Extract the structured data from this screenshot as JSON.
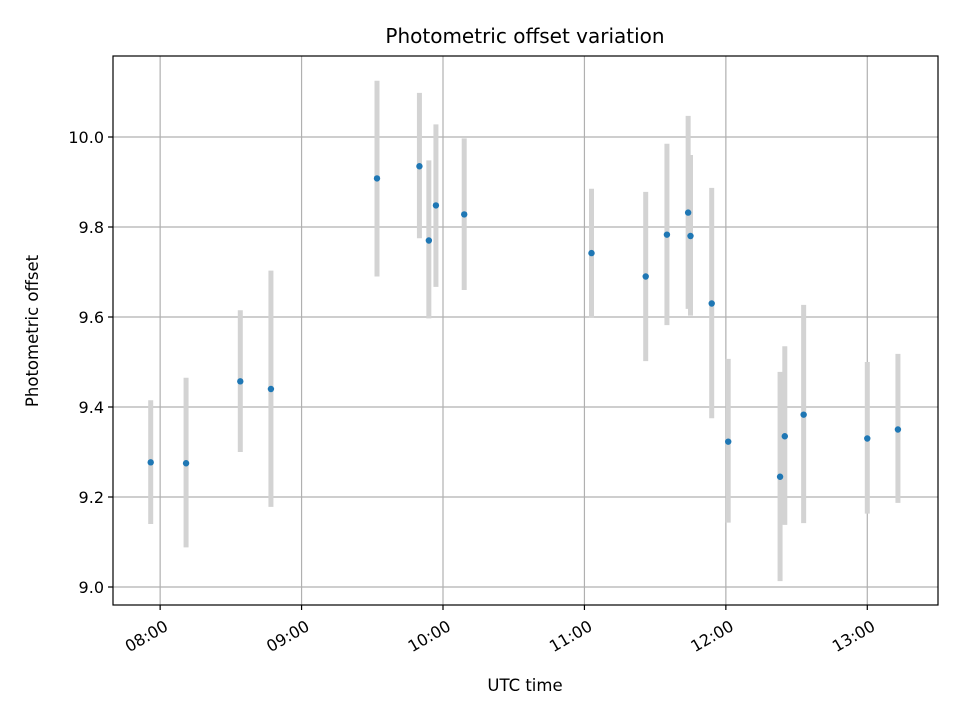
{
  "chart_data": {
    "type": "scatter",
    "title": "Photometric offset variation",
    "xlabel": "UTC time",
    "ylabel": "Photometric offset",
    "x_axis_kind": "time",
    "xlim": [
      "07:40",
      "13:30"
    ],
    "ylim": [
      8.96,
      10.18
    ],
    "xticks": [
      "08:00",
      "09:00",
      "10:00",
      "11:00",
      "12:00",
      "13:00"
    ],
    "yticks": [
      9.0,
      9.2,
      9.4,
      9.6,
      9.8,
      10.0
    ],
    "ytick_labels": [
      "9.0",
      "9.2",
      "9.4",
      "9.6",
      "9.8",
      "10.0"
    ],
    "grid": true,
    "point_color": "#1f77b4",
    "errorbar_color": "#d3d3d3",
    "points": [
      {
        "x": "07:56",
        "y": 9.277,
        "low": 9.14,
        "high": 9.415
      },
      {
        "x": "08:11",
        "y": 9.275,
        "low": 9.088,
        "high": 9.465
      },
      {
        "x": "08:34",
        "y": 9.457,
        "low": 9.3,
        "high": 9.615
      },
      {
        "x": "08:47",
        "y": 9.44,
        "low": 9.178,
        "high": 9.703
      },
      {
        "x": "09:32",
        "y": 9.908,
        "low": 9.69,
        "high": 10.125
      },
      {
        "x": "09:50",
        "y": 9.935,
        "low": 9.775,
        "high": 10.098
      },
      {
        "x": "09:54",
        "y": 9.77,
        "low": 9.597,
        "high": 9.948
      },
      {
        "x": "09:57",
        "y": 9.848,
        "low": 9.667,
        "high": 10.028
      },
      {
        "x": "10:09",
        "y": 9.828,
        "low": 9.66,
        "high": 9.997
      },
      {
        "x": "11:03",
        "y": 9.742,
        "low": 9.598,
        "high": 9.885
      },
      {
        "x": "11:26",
        "y": 9.69,
        "low": 9.502,
        "high": 9.878
      },
      {
        "x": "11:35",
        "y": 9.783,
        "low": 9.582,
        "high": 9.985
      },
      {
        "x": "11:44",
        "y": 9.832,
        "low": 9.618,
        "high": 10.047
      },
      {
        "x": "11:45",
        "y": 9.78,
        "low": 9.603,
        "high": 9.96
      },
      {
        "x": "11:54",
        "y": 9.63,
        "low": 9.375,
        "high": 9.887
      },
      {
        "x": "12:01",
        "y": 9.323,
        "low": 9.143,
        "high": 9.507
      },
      {
        "x": "12:23",
        "y": 9.245,
        "low": 9.013,
        "high": 9.478
      },
      {
        "x": "12:25",
        "y": 9.335,
        "low": 9.138,
        "high": 9.535
      },
      {
        "x": "12:33",
        "y": 9.383,
        "low": 9.142,
        "high": 9.627
      },
      {
        "x": "13:00",
        "y": 9.33,
        "low": 9.163,
        "high": 9.5
      },
      {
        "x": "13:13",
        "y": 9.35,
        "low": 9.187,
        "high": 9.518
      }
    ]
  }
}
